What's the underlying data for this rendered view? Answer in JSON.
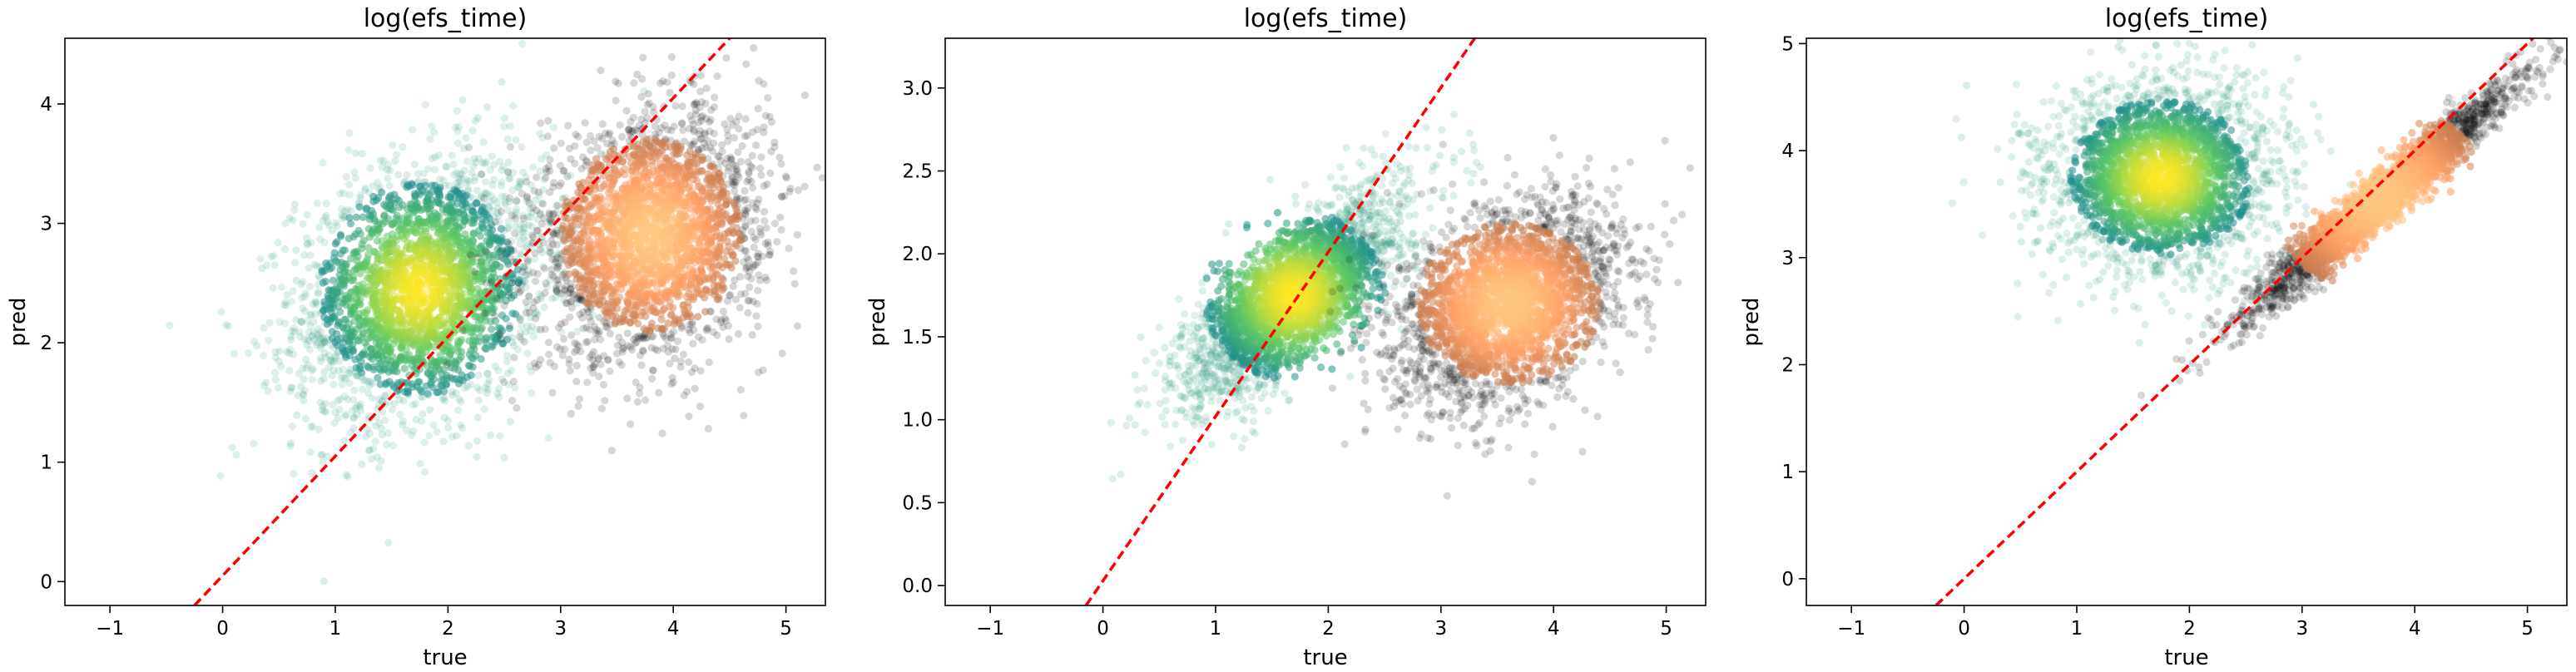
{
  "chart_data": [
    {
      "type": "scatter",
      "title": "log(efs_time)",
      "xlabel": "true",
      "ylabel": "pred",
      "xlim": [
        -1.4,
        5.35
      ],
      "ylim": [
        -0.2,
        4.55
      ],
      "xticks": [
        -1,
        0,
        1,
        2,
        3,
        4,
        5
      ],
      "yticks": [
        0,
        1,
        2,
        3,
        4
      ],
      "xtick_labels": [
        "−1",
        "0",
        "1",
        "2",
        "3",
        "4",
        "5"
      ],
      "ytick_labels": [
        "0",
        "1",
        "2",
        "3",
        "4"
      ],
      "reference_line": {
        "x": [
          -0.25,
          4.6
        ],
        "y": [
          -0.2,
          4.65
        ],
        "color": "#ff0000",
        "style": "dashed"
      },
      "series": [
        {
          "colormap": "viridis",
          "color": "#2a9d7a",
          "center": [
            1.75,
            2.45
          ],
          "spread": [
            0.55,
            0.55
          ],
          "correlation": 0.25,
          "count": 2600
        },
        {
          "colormap": "copper",
          "color": "#000000",
          "center": [
            3.8,
            2.9
          ],
          "spread": [
            0.5,
            0.5
          ],
          "correlation": 0.2,
          "count": 2600
        }
      ]
    },
    {
      "type": "scatter",
      "title": "log(efs_time)",
      "xlabel": "true",
      "ylabel": "pred",
      "xlim": [
        -1.4,
        5.35
      ],
      "ylim": [
        -0.12,
        3.3
      ],
      "xticks": [
        -1,
        0,
        1,
        2,
        3,
        4,
        5
      ],
      "yticks": [
        0.0,
        0.5,
        1.0,
        1.5,
        2.0,
        2.5,
        3.0
      ],
      "xtick_labels": [
        "−1",
        "0",
        "1",
        "2",
        "3",
        "4",
        "5"
      ],
      "ytick_labels": [
        "0.0",
        "0.5",
        "1.0",
        "1.5",
        "2.0",
        "2.5",
        "3.0"
      ],
      "reference_line": {
        "x": [
          -0.15,
          3.3
        ],
        "y": [
          -0.12,
          3.3
        ],
        "color": "#ff0000",
        "style": "dashed"
      },
      "series": [
        {
          "colormap": "viridis",
          "color": "#2a9d7a",
          "center": [
            1.7,
            1.75
          ],
          "spread": [
            0.5,
            0.32
          ],
          "correlation": 0.75,
          "count": 2600
        },
        {
          "colormap": "copper",
          "color": "#000000",
          "center": [
            3.6,
            1.7
          ],
          "spread": [
            0.5,
            0.3
          ],
          "correlation": 0.35,
          "count": 2600
        }
      ]
    },
    {
      "type": "scatter",
      "title": "log(efs_time)",
      "xlabel": "true",
      "ylabel": "pred",
      "xlim": [
        -1.4,
        5.35
      ],
      "ylim": [
        -0.25,
        5.05
      ],
      "xticks": [
        -1,
        0,
        1,
        2,
        3,
        4,
        5
      ],
      "yticks": [
        0,
        1,
        2,
        3,
        4,
        5
      ],
      "xtick_labels": [
        "−1",
        "0",
        "1",
        "2",
        "3",
        "4",
        "5"
      ],
      "ytick_labels": [
        "0",
        "1",
        "2",
        "3",
        "4",
        "5"
      ],
      "reference_line": {
        "x": [
          -0.25,
          5.05
        ],
        "y": [
          -0.25,
          5.05
        ],
        "color": "#ff0000",
        "style": "dashed"
      },
      "series": [
        {
          "colormap": "viridis",
          "color": "#2a9d7a",
          "center": [
            1.75,
            3.75
          ],
          "spread": [
            0.5,
            0.45
          ],
          "correlation": 0.05,
          "count": 2600
        },
        {
          "colormap": "copper",
          "color": "#000000",
          "center": [
            3.7,
            3.55
          ],
          "spread": [
            0.6,
            0.55
          ],
          "correlation": 0.97,
          "count": 2600
        }
      ]
    }
  ]
}
